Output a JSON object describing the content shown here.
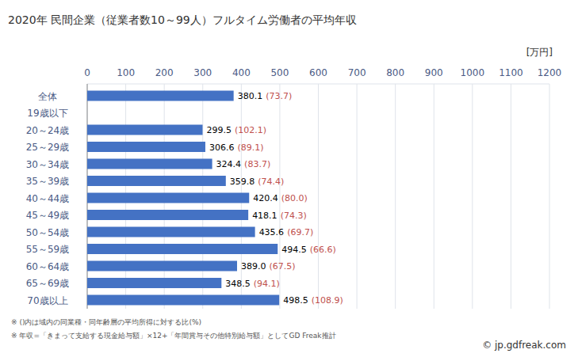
{
  "chart_data": {
    "type": "bar",
    "orientation": "horizontal",
    "title": "2020年 民間企業（従業者数10～99人）フルタイム労働者の平均年収",
    "x_label": "[万円]",
    "categories": [
      "全体",
      "19歳以下",
      "20～24歳",
      "25～29歳",
      "30～34歳",
      "35～39歳",
      "40～44歳",
      "45～49歳",
      "50～54歳",
      "55～59歳",
      "60～64歳",
      "65～69歳",
      "70歳以上"
    ],
    "values": [
      380.1,
      null,
      299.5,
      306.6,
      324.4,
      359.8,
      420.4,
      418.1,
      435.6,
      494.5,
      389.0,
      348.5,
      498.5
    ],
    "value_labels": [
      "380.1",
      null,
      "299.5",
      "306.6",
      "324.4",
      "359.8",
      "420.4",
      "418.1",
      "435.6",
      "494.5",
      "389.0",
      "348.5",
      "498.5"
    ],
    "ratio_labels": [
      "(73.7)",
      null,
      "(102.1)",
      "(89.1)",
      "(83.7)",
      "(74.4)",
      "(80.0)",
      "(74.3)",
      "(69.7)",
      "(66.6)",
      "(67.5)",
      "(94.1)",
      "(108.9)"
    ],
    "color": "#4472c4",
    "xlim": [
      0,
      1200
    ],
    "xticks": [
      0,
      100,
      200,
      300,
      400,
      500,
      600,
      700,
      800,
      900,
      1000,
      1100,
      1200
    ],
    "grid": true,
    "data_labels": true,
    "notes": [
      "※ ()内は域内の同業種・同年齢層の平均所得に対する比(%)",
      "※ 年収=「きまって支給する現金給与額」×12+「年間賞与その他特別給与額」としてGD Freak推計"
    ],
    "source": "© jp.gdfreak.com"
  }
}
